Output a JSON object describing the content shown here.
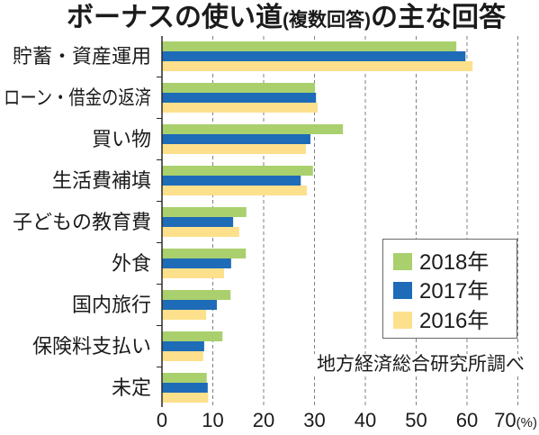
{
  "chart_data": {
    "type": "bar",
    "horizontal": true,
    "title": {
      "main": "ボーナスの使い道",
      "note": "(複数回答)",
      "suffix": "の主な回答"
    },
    "categories": [
      "貯蓄・資産運用",
      "ローン・借金の返済",
      "買い物",
      "生活費補填",
      "子どもの教育費",
      "外食",
      "国内旅行",
      "保険料支払い",
      "未定"
    ],
    "series": [
      {
        "name": "2018年",
        "color": "#a9d06d",
        "values": [
          57.9,
          30.1,
          35.6,
          29.7,
          16.6,
          16.5,
          13.5,
          11.9,
          8.8
        ]
      },
      {
        "name": "2017年",
        "color": "#1e6bb8",
        "values": [
          59.7,
          30.3,
          29.2,
          27.3,
          14.0,
          13.6,
          10.8,
          8.3,
          9.0
        ]
      },
      {
        "name": "2016年",
        "color": "#fde08b",
        "values": [
          61.1,
          30.6,
          28.3,
          28.5,
          15.2,
          12.2,
          8.7,
          8.1,
          9.1
        ]
      }
    ],
    "xlim": [
      0,
      70
    ],
    "x_ticks": [
      0,
      10,
      20,
      30,
      40,
      50,
      60,
      70
    ],
    "x_unit": "(%)",
    "grid": true,
    "legend": "lower-right",
    "source": "地方経済総合研究所調べ"
  }
}
